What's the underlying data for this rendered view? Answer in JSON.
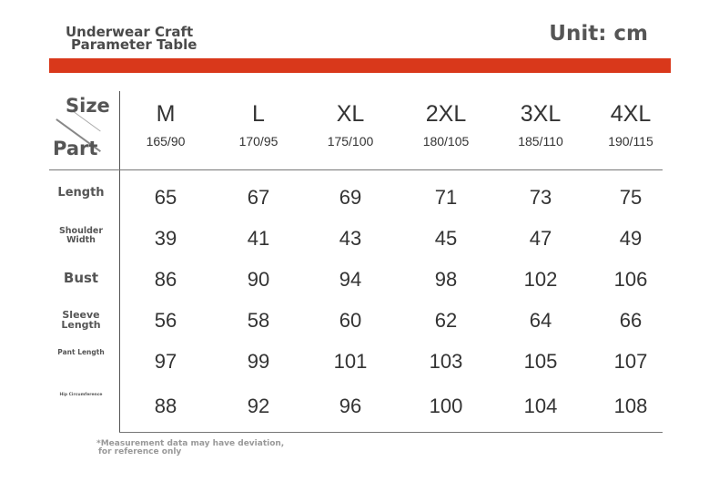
{
  "header": {
    "title_line1": "Underwear Craft",
    "title_line2": "Parameter Table",
    "unit": "Unit: cm"
  },
  "table": {
    "corner_top": "Size",
    "corner_bottom": "Part",
    "sizes": [
      {
        "name": "M",
        "spec": "165/90"
      },
      {
        "name": "L",
        "spec": "170/95"
      },
      {
        "name": "XL",
        "spec": "175/100"
      },
      {
        "name": "2XL",
        "spec": "180/105"
      },
      {
        "name": "3XL",
        "spec": "185/110"
      },
      {
        "name": "4XL",
        "spec": "190/115"
      }
    ],
    "rows": [
      {
        "part_line1": "Length",
        "part_line2": "",
        "values": [
          "65",
          "67",
          "69",
          "71",
          "73",
          "75"
        ]
      },
      {
        "part_line1": "Shoulder",
        "part_line2": "Width",
        "values": [
          "39",
          "41",
          "43",
          "45",
          "47",
          "49"
        ]
      },
      {
        "part_line1": "Bust",
        "part_line2": "",
        "values": [
          "86",
          "90",
          "94",
          "98",
          "102",
          "106"
        ]
      },
      {
        "part_line1": "Sleeve",
        "part_line2": "Length",
        "values": [
          "56",
          "58",
          "60",
          "62",
          "64",
          "66"
        ]
      },
      {
        "part_line1": "Pant Length",
        "part_line2": "",
        "values": [
          "97",
          "99",
          "101",
          "103",
          "105",
          "107"
        ]
      },
      {
        "part_line1": "Hip Circumference",
        "part_line2": "",
        "values": [
          "88",
          "92",
          "96",
          "100",
          "104",
          "108"
        ]
      }
    ]
  },
  "footnote": {
    "line1": "*Measurement data may have deviation,",
    "line2": "for reference only"
  },
  "colors": {
    "accent_bar": "#d9381b",
    "text": "#333333",
    "label": "#555555"
  }
}
